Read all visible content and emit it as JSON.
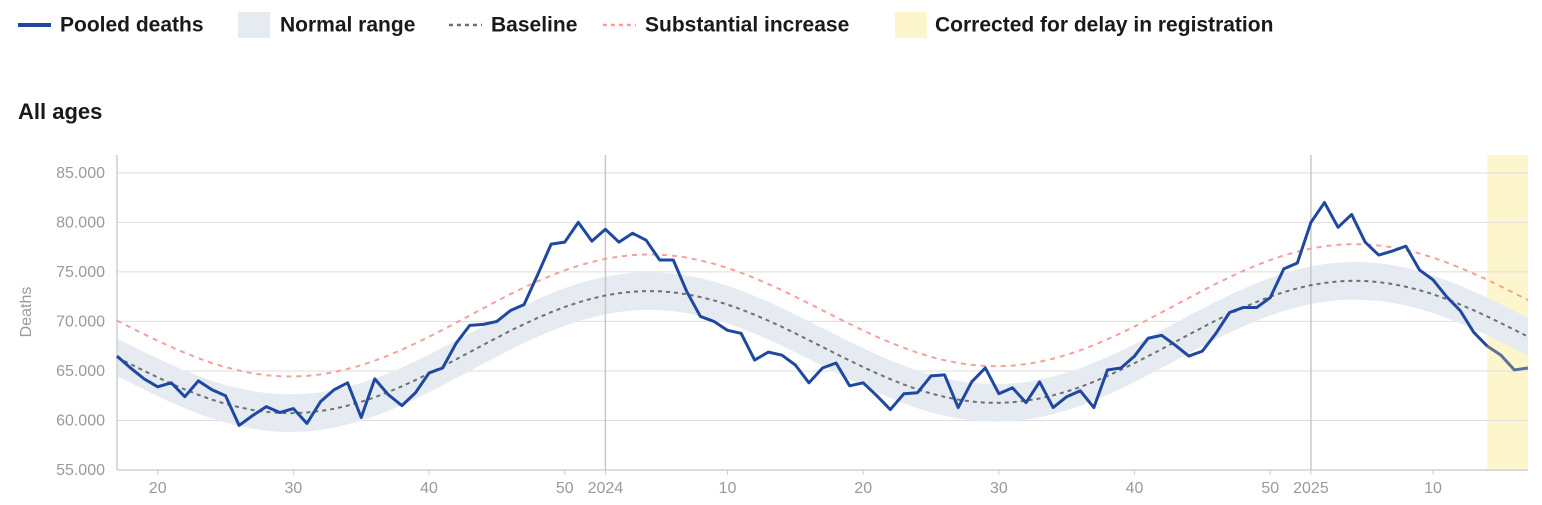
{
  "chart_data": {
    "type": "line",
    "title": "All ages",
    "y_label": "Deaths",
    "categories": [
      null,
      null,
      null,
      "20",
      null,
      null,
      null,
      null,
      null,
      null,
      null,
      null,
      null,
      "30",
      null,
      null,
      null,
      null,
      null,
      null,
      null,
      null,
      null,
      "40",
      null,
      null,
      null,
      null,
      null,
      null,
      null,
      null,
      null,
      "50",
      null,
      null,
      "2024",
      null,
      null,
      null,
      null,
      null,
      null,
      null,
      null,
      "10",
      null,
      null,
      null,
      null,
      null,
      null,
      null,
      null,
      null,
      "20",
      null,
      null,
      null,
      null,
      null,
      null,
      null,
      null,
      null,
      "30",
      null,
      null,
      null,
      null,
      null,
      null,
      null,
      null,
      null,
      "40",
      null,
      null,
      null,
      null,
      null,
      null,
      null,
      null,
      null,
      "50",
      null,
      null,
      "2025",
      null,
      null,
      null,
      null,
      null,
      null,
      null,
      null,
      "10",
      null,
      null,
      null,
      null,
      null,
      null,
      null
    ],
    "year_lines": [
      36,
      88
    ],
    "ylim": [
      55000,
      86800
    ],
    "yticks": [
      {
        "value": 55000,
        "label": "55.000"
      },
      {
        "value": 60000,
        "label": "60.000"
      },
      {
        "value": 65000,
        "label": "65.000"
      },
      {
        "value": 70000,
        "label": "70.000"
      },
      {
        "value": 75000,
        "label": "75.000"
      },
      {
        "value": 80000,
        "label": "80.000"
      },
      {
        "value": 85000,
        "label": "85.000"
      }
    ],
    "grid": true,
    "series": [
      {
        "name": "Pooled deaths",
        "color": "#1f48a1",
        "values": [
          66500,
          65300,
          64200,
          63400,
          63800,
          62400,
          64000,
          63100,
          62500,
          59500,
          60500,
          61400,
          60800,
          61200,
          59700,
          61900,
          63100,
          63800,
          60300,
          64200,
          62600,
          61500,
          62800,
          64800,
          65300,
          67800,
          69600,
          69700,
          70000,
          71100,
          71700,
          74700,
          77800,
          78000,
          80000,
          78100,
          79300,
          78000,
          78900,
          78200,
          76200,
          76200,
          73000,
          70500,
          70000,
          69100,
          68800,
          66100,
          66900,
          66600,
          65600,
          63800,
          65300,
          65800,
          63500,
          63800,
          62500,
          61100,
          62700,
          62800,
          64500,
          64600,
          61300,
          63900,
          65300,
          62700,
          63300,
          61800,
          63900,
          61300,
          62400,
          63000,
          61300,
          65100,
          65300,
          66500,
          68300,
          68600,
          67600,
          66500,
          67000,
          68800,
          70900,
          71400,
          71400,
          72400,
          75300,
          75900,
          80000,
          82000,
          79500,
          80800,
          78000,
          76700,
          77100,
          77600,
          75200,
          74200,
          72500,
          71100,
          68900,
          67500,
          66600,
          65100,
          65300
        ]
      },
      {
        "name": "Normal range",
        "color": "#e6ebf1",
        "lower": [
          64480,
          63790,
          63110,
          62450,
          61820,
          61230,
          60690,
          60200,
          59780,
          59440,
          59160,
          58970,
          58860,
          58840,
          58900,
          59050,
          59280,
          59600,
          59980,
          60440,
          60970,
          61550,
          62180,
          62850,
          63550,
          64270,
          65000,
          65730,
          66450,
          67160,
          67820,
          68450,
          69030,
          69560,
          70020,
          70400,
          70720,
          70950,
          71100,
          71160,
          71140,
          71030,
          70840,
          70560,
          70220,
          69800,
          69310,
          68770,
          68180,
          67560,
          66890,
          66210,
          65520,
          64830,
          64150,
          63490,
          62860,
          62270,
          61730,
          61240,
          60820,
          60480,
          60200,
          60010,
          59900,
          59880,
          59940,
          60090,
          60320,
          60640,
          61020,
          61480,
          62010,
          62590,
          63220,
          63890,
          64590,
          65310,
          66040,
          66770,
          67490,
          68200,
          68860,
          69490,
          70070,
          70600,
          71060,
          71440,
          71760,
          71990,
          72140,
          72200,
          72180,
          72070,
          71880,
          71600,
          71260,
          70840,
          70350,
          69810,
          69220,
          68600,
          67930,
          67250,
          66560
        ],
        "upper": [
          68280,
          67590,
          66910,
          66250,
          65620,
          65030,
          64490,
          64000,
          63580,
          63240,
          62960,
          62770,
          62660,
          62640,
          62700,
          62850,
          63080,
          63400,
          63780,
          64240,
          64770,
          65350,
          65980,
          66650,
          67350,
          68070,
          68800,
          69530,
          70250,
          70960,
          71620,
          72250,
          72830,
          73360,
          73820,
          74200,
          74520,
          74750,
          74900,
          74960,
          74940,
          74830,
          74640,
          74360,
          74020,
          73600,
          73110,
          72570,
          71980,
          71360,
          70690,
          70010,
          69320,
          68630,
          67950,
          67290,
          66660,
          66070,
          65530,
          65040,
          64620,
          64280,
          64000,
          63810,
          63700,
          63680,
          63740,
          63890,
          64120,
          64440,
          64820,
          65280,
          65810,
          66390,
          67020,
          67690,
          68390,
          69110,
          69840,
          70570,
          71290,
          72000,
          72660,
          73290,
          73870,
          74400,
          74860,
          75240,
          75560,
          75790,
          75940,
          76000,
          75980,
          75870,
          75680,
          75400,
          75060,
          74640,
          74150,
          73610,
          73020,
          72400,
          71730,
          71050,
          70360
        ]
      },
      {
        "name": "Baseline",
        "color": "#707070",
        "dashed": true,
        "values": [
          66380,
          65690,
          65010,
          64350,
          63720,
          63130,
          62590,
          62100,
          61680,
          61340,
          61060,
          60870,
          60760,
          60740,
          60800,
          60950,
          61180,
          61500,
          61880,
          62340,
          62870,
          63450,
          64080,
          64750,
          65450,
          66170,
          66900,
          67630,
          68350,
          69060,
          69720,
          70350,
          70930,
          71460,
          71920,
          72300,
          72620,
          72850,
          73000,
          73060,
          73040,
          72930,
          72740,
          72460,
          72120,
          71700,
          71210,
          70670,
          70080,
          69460,
          68790,
          68110,
          67420,
          66730,
          66050,
          65390,
          64760,
          64170,
          63630,
          63140,
          62720,
          62380,
          62100,
          61910,
          61800,
          61780,
          61840,
          61990,
          62220,
          62540,
          62920,
          63380,
          63910,
          64490,
          65120,
          65790,
          66490,
          67210,
          67940,
          68670,
          69390,
          70100,
          70760,
          71390,
          71970,
          72500,
          72960,
          73340,
          73660,
          73890,
          74040,
          74100,
          74080,
          73970,
          73780,
          73500,
          73160,
          72740,
          72250,
          71710,
          71120,
          70500,
          69830,
          69150,
          68460
        ]
      },
      {
        "name": "Substantial increase",
        "color": "#f4a09b",
        "dashed": true,
        "values": [
          70080,
          69390,
          68710,
          68050,
          67420,
          66830,
          66290,
          65800,
          65380,
          65040,
          64760,
          64570,
          64460,
          64440,
          64500,
          64650,
          64880,
          65200,
          65580,
          66040,
          66570,
          67150,
          67780,
          68450,
          69150,
          69870,
          70600,
          71330,
          72050,
          72760,
          73420,
          74050,
          74630,
          75160,
          75620,
          76000,
          76320,
          76550,
          76700,
          76760,
          76740,
          76630,
          76440,
          76160,
          75820,
          75400,
          74910,
          74370,
          73780,
          73160,
          72490,
          71810,
          71120,
          70430,
          69750,
          69090,
          68460,
          67870,
          67330,
          66840,
          66420,
          66080,
          65800,
          65610,
          65500,
          65480,
          65540,
          65690,
          65920,
          66240,
          66620,
          67080,
          67610,
          68190,
          68820,
          69490,
          70190,
          70910,
          71640,
          72370,
          73090,
          73800,
          74460,
          75090,
          75670,
          76200,
          76660,
          77040,
          77360,
          77590,
          77740,
          77800,
          77780,
          77670,
          77480,
          77200,
          76860,
          76440,
          75950,
          75410,
          74820,
          74200,
          73530,
          72850,
          72160
        ]
      }
    ],
    "corrected": {
      "name": "Corrected for delay in registration",
      "color": "#fdf6cd",
      "line_color": "#5a7099",
      "range": [
        101,
        104
      ]
    }
  }
}
